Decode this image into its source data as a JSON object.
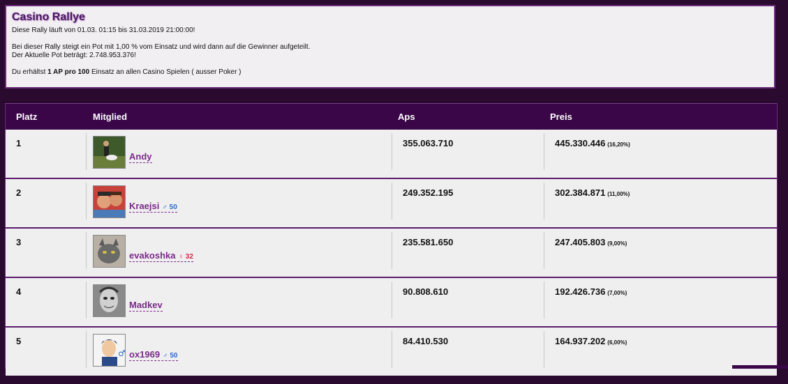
{
  "info": {
    "title": "Casino Rallye",
    "line1": "Diese Rally läuft von 01.03. 01:15 bis 31.03.2019 21:00:00!",
    "line2": "Bei dieser Rally steigt ein Pot mit 1,00 % vom Einsatz und wird dann auf die Gewinner aufgeteilt.",
    "line3": "Der Aktuelle Pot beträgt: 2.748.953.376!",
    "line4_pre": "Du erhältst ",
    "line4_bold1": "1 AP pro 100",
    "line4_post": " Einsatz an allen Casino Spielen ( ausser Poker )"
  },
  "table": {
    "headers": {
      "rank": "Platz",
      "member": "Mitglied",
      "aps": "Aps",
      "prize": "Preis"
    },
    "rows": [
      {
        "rank": "1",
        "name": "Andy",
        "gender_icon": "male-icon",
        "gender_symbol": "",
        "age": "",
        "aps": "355.063.710",
        "prize": "445.330.446",
        "pct": "(16,20%)"
      },
      {
        "rank": "2",
        "name": "Kraejsi",
        "gender_icon": "male-icon",
        "gender_symbol": "♂",
        "age": "50",
        "aps": "249.352.195",
        "prize": "302.384.871",
        "pct": "(11,00%)"
      },
      {
        "rank": "3",
        "name": "evakoshka",
        "gender_icon": "female-icon",
        "gender_symbol": "♀",
        "age": "32",
        "aps": "235.581.650",
        "prize": "247.405.803",
        "pct": "(9,00%)"
      },
      {
        "rank": "4",
        "name": "Madkev",
        "gender_icon": "male-icon",
        "gender_symbol": "",
        "age": "",
        "aps": "90.808.610",
        "prize": "192.426.736",
        "pct": "(7,00%)"
      },
      {
        "rank": "5",
        "name": "ox1969",
        "gender_icon": "male-icon",
        "gender_symbol": "♂",
        "age": "50",
        "aps": "84.410.530",
        "prize": "164.937.202",
        "pct": "(6,00%)"
      }
    ]
  },
  "colors": {
    "header_bg": "#3a0648",
    "page_bg": "#2a0a2e",
    "username": "#7a2a8a",
    "male": "#2a6acb",
    "female": "#d8284a"
  }
}
